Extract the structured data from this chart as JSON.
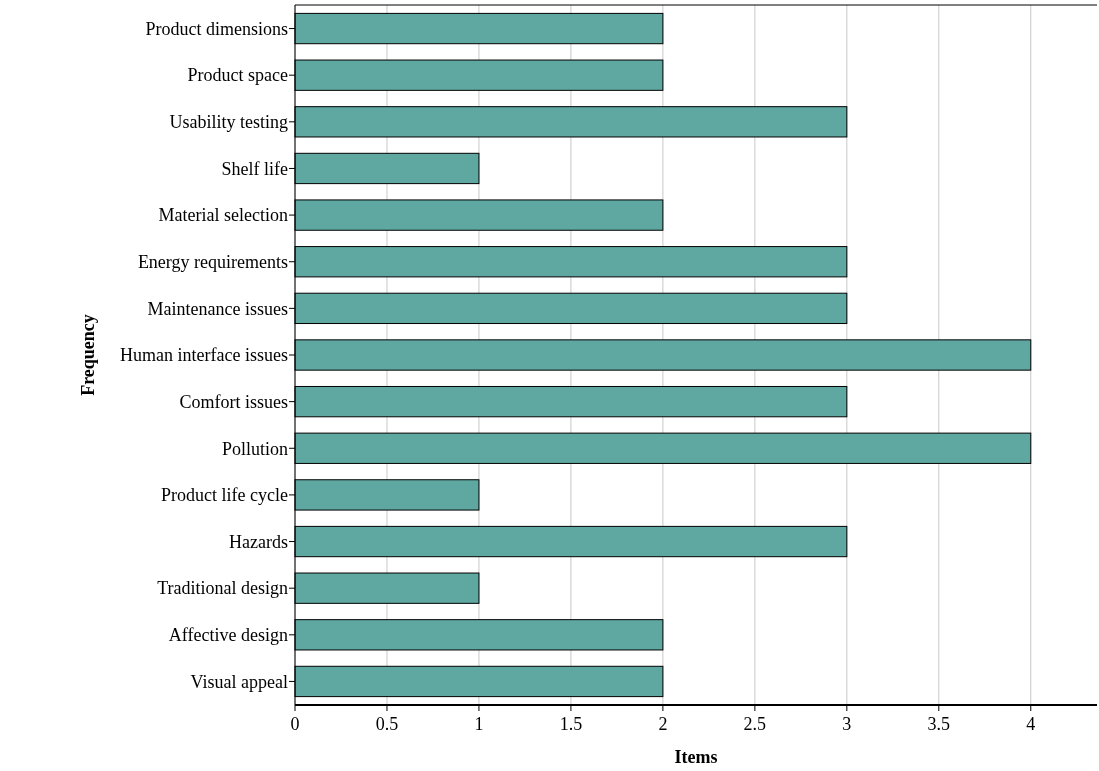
{
  "chart_data": {
    "type": "bar",
    "orientation": "horizontal",
    "xlabel": "Items",
    "ylabel": "Frequency",
    "categories": [
      "Product dimensions",
      "Product space",
      "Usability testing",
      "Shelf life",
      "Material selection",
      "Energy requirements",
      "Maintenance issues",
      "Human interface issues",
      "Comfort issues",
      "Pollution",
      "Product life cycle",
      "Hazards",
      "Traditional design",
      "Affective design",
      "Visual appeal"
    ],
    "values": [
      2,
      2,
      3,
      1,
      2,
      3,
      3,
      4,
      3,
      4,
      1,
      3,
      1,
      2,
      2
    ],
    "color": "#5fa8a2",
    "xlim": [
      0,
      4.36
    ],
    "xticks": [
      0,
      0.5,
      1,
      1.5,
      2,
      2.5,
      3,
      3.5,
      4
    ],
    "grid": "x"
  }
}
